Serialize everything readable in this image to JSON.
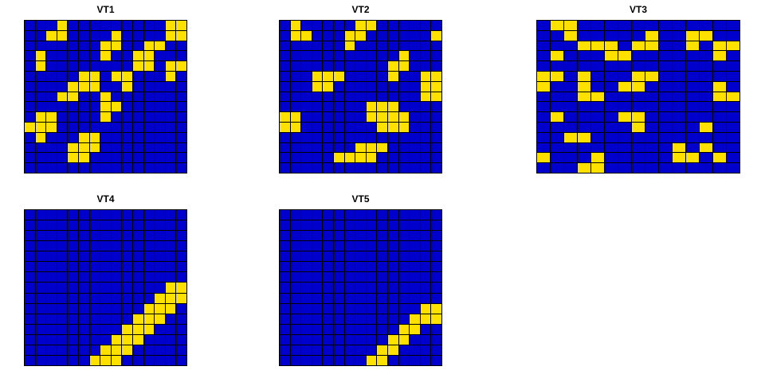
{
  "figure": {
    "background": "#FFFFFF"
  },
  "palette": {
    "0": "#0000CD",
    "1": "#FFE100",
    "gridline": "#000000",
    "title_color": "#000000"
  },
  "chart_data": [
    {
      "type": "heatmap",
      "title": "VT1",
      "rows": 15,
      "cols": 15,
      "cell_encoding": {
        "0": "blue-off",
        "1": "yellow-on"
      },
      "matrix": [
        "000100000000011",
        "001100001000011",
        "000000011001100",
        "010000010011000",
        "010000000011011",
        "000001101100010",
        "000011100100000",
        "000110010000000",
        "000000011000000",
        "011000010000000",
        "111000000000000",
        "010001100000000",
        "000011100000000",
        "000011000000000",
        "000000000000000"
      ]
    },
    {
      "type": "heatmap",
      "title": "VT2",
      "rows": 15,
      "cols": 15,
      "cell_encoding": {
        "0": "blue-off",
        "1": "yellow-on"
      },
      "matrix": [
        "010000011000000",
        "011000110000001",
        "000000100000000",
        "000000000001000",
        "000000000011000",
        "000111000010011",
        "000110000000011",
        "000000000000011",
        "000000001110000",
        "110000001111000",
        "110000000111000",
        "000000000000000",
        "000000011100000",
        "000001111000000",
        "000000000000000"
      ]
    },
    {
      "type": "heatmap",
      "title": "VT3",
      "rows": 15,
      "cols": 15,
      "cell_encoding": {
        "0": "blue-off",
        "1": "yellow-on"
      },
      "matrix": [
        "011000000000000",
        "001000001001100",
        "000111011001011",
        "010001100000010",
        "000000000000000",
        "110100011000000",
        "100100110000010",
        "000110000000011",
        "000000000000000",
        "010000110000000",
        "000000010000100",
        "001100000000000",
        "000000000010100",
        "100010000011010",
        "000110000000000"
      ]
    },
    {
      "type": "heatmap",
      "title": "VT4",
      "rows": 15,
      "cols": 15,
      "cell_encoding": {
        "0": "blue-off",
        "1": "yellow-on"
      },
      "matrix": [
        "000000000000000",
        "000000000000000",
        "000000000000000",
        "000000000000000",
        "000000000000000",
        "000000000000000",
        "000000000000000",
        "000000000000011",
        "000000000000111",
        "000000000001110",
        "000000000011100",
        "000000000111000",
        "000000001110000",
        "000000011100000",
        "000000111000000"
      ]
    },
    {
      "type": "heatmap",
      "title": "VT5",
      "rows": 15,
      "cols": 15,
      "cell_encoding": {
        "0": "blue-off",
        "1": "yellow-on"
      },
      "matrix": [
        "000000000000000",
        "000000000000000",
        "000000000000000",
        "000000000000000",
        "000000000000000",
        "000000000000000",
        "000000000000000",
        "000000000000000",
        "000000000000000",
        "000000000000011",
        "000000000000111",
        "000000000001100",
        "000000000011000",
        "000000000110000",
        "000000001100000"
      ]
    }
  ]
}
